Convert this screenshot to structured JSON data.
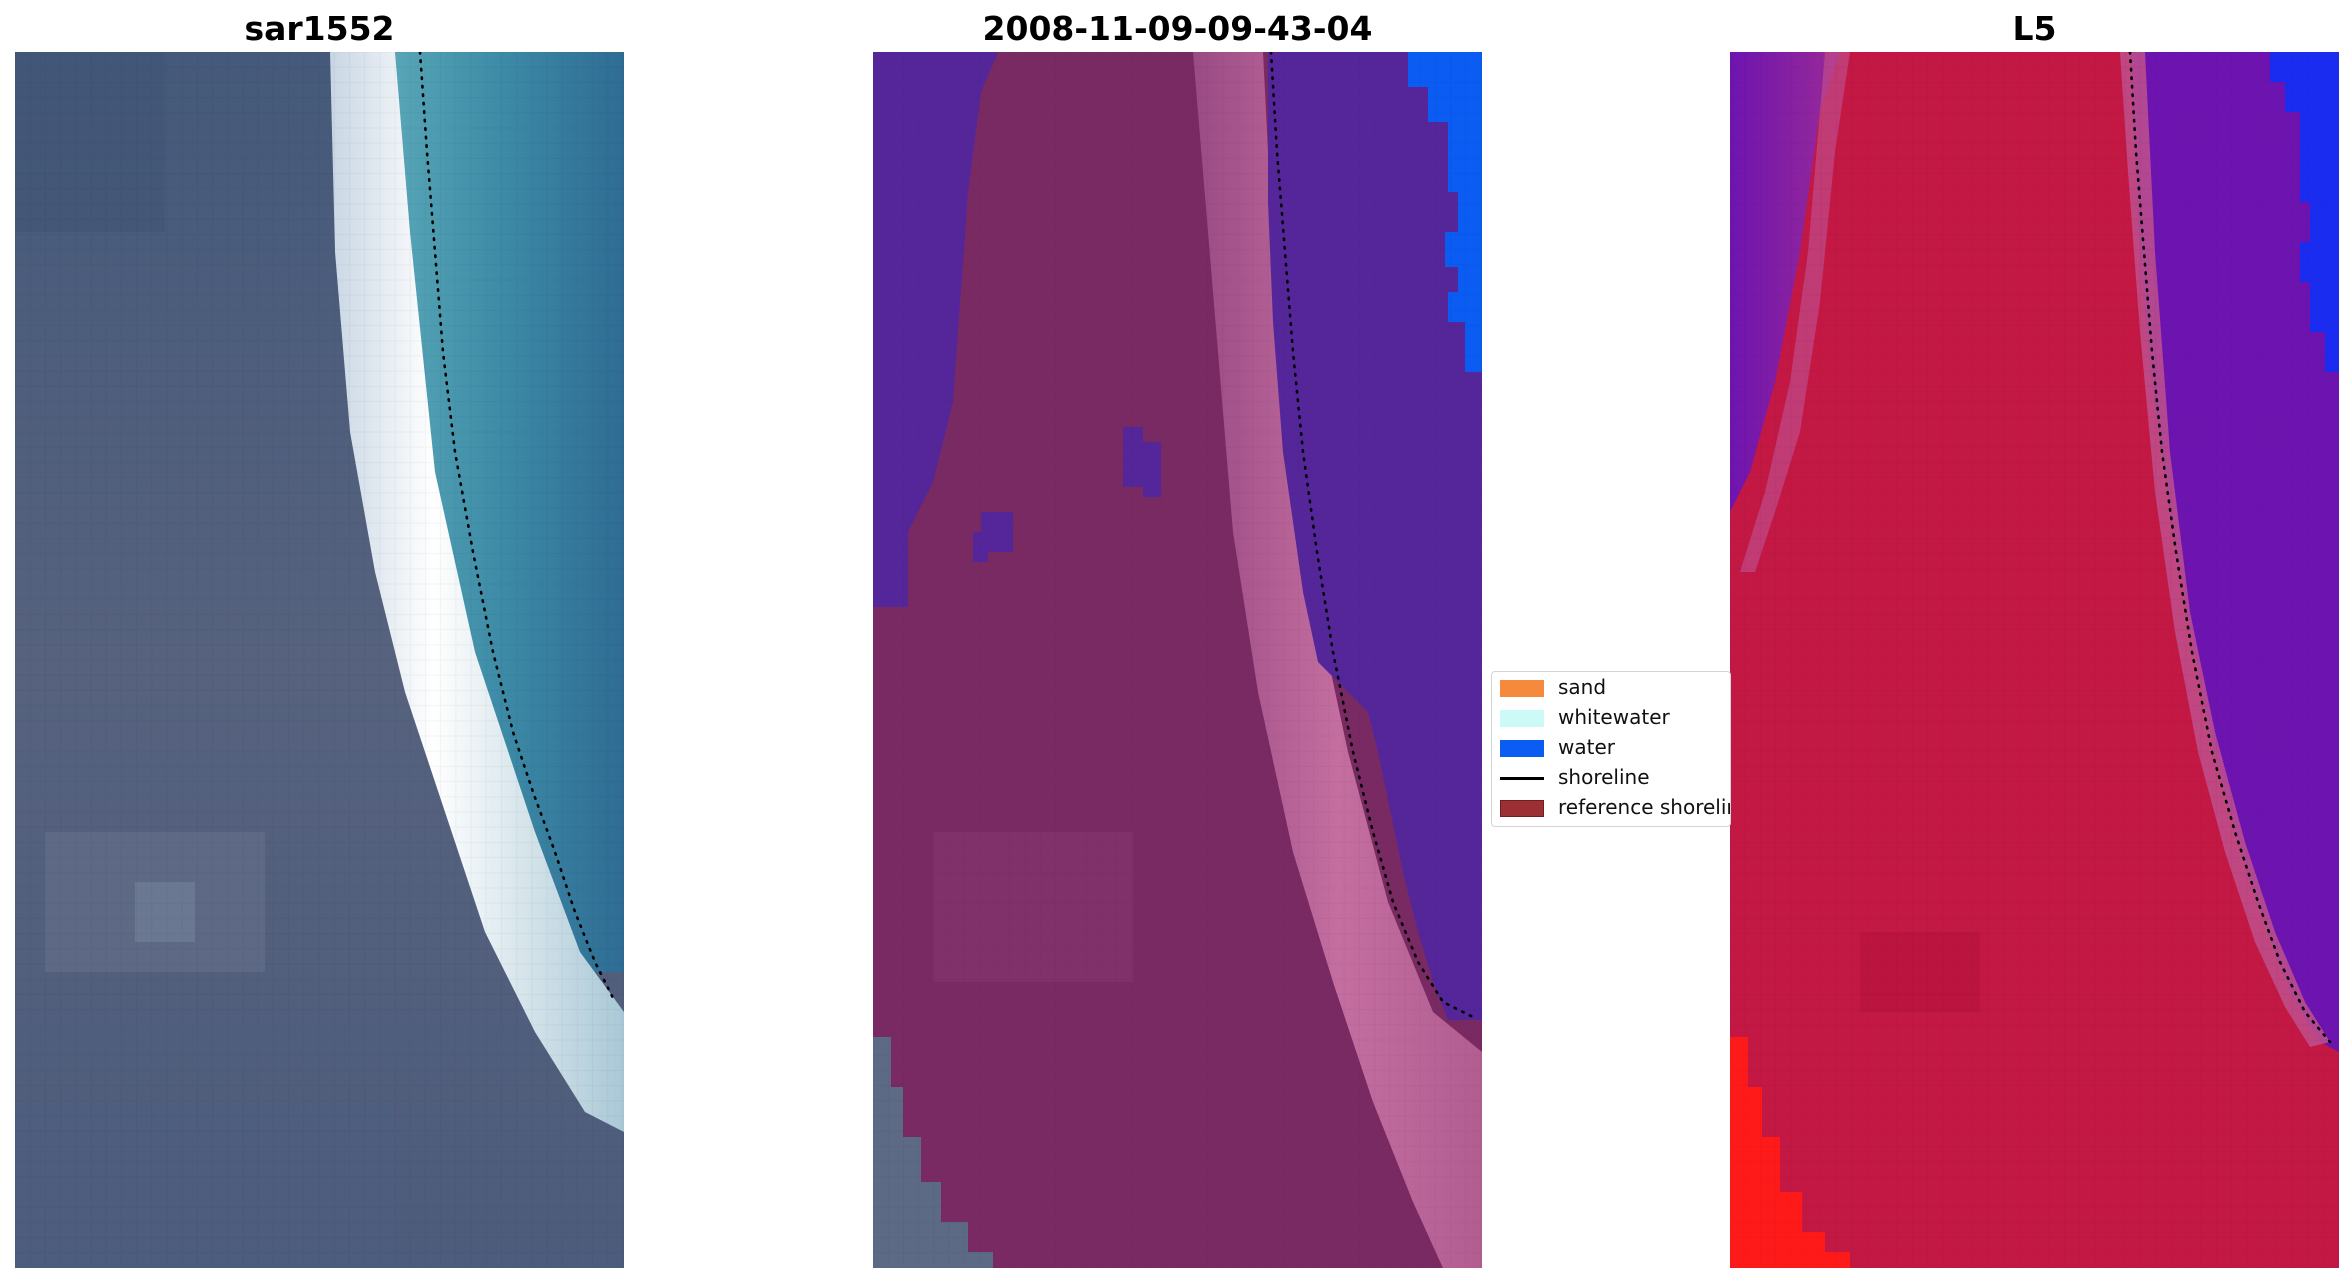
{
  "panels": [
    {
      "title": "sar1552"
    },
    {
      "title": "2008-11-09-09-43-04"
    },
    {
      "title": "L5"
    }
  ],
  "legend": {
    "items": [
      {
        "label": "sand",
        "color": "#f58a3c",
        "kind": "patch"
      },
      {
        "label": "whitewater",
        "color": "#ccfbf7",
        "kind": "patch"
      },
      {
        "label": "water",
        "color": "#0a5cf2",
        "kind": "patch"
      },
      {
        "label": "shoreline",
        "color": "#000000",
        "kind": "line"
      },
      {
        "label": "reference shoreline",
        "color": "#9b2f34",
        "kind": "patch"
      }
    ]
  },
  "colors": {
    "rgb_land": "#4e6180",
    "rgb_surf": "#f4f9fb",
    "rgb_water": "#3f86a3",
    "class_land": "#7a2a63",
    "class_water": "#55269a",
    "class_blue": "#0a5cf2",
    "class_surf": "#c06a9a",
    "ndwi_red": "#c31844",
    "ndwi_purple": "#6d14b0",
    "ndwi_blue": "#1a2cf0",
    "ndwi_bright": "#ff1a1a"
  }
}
